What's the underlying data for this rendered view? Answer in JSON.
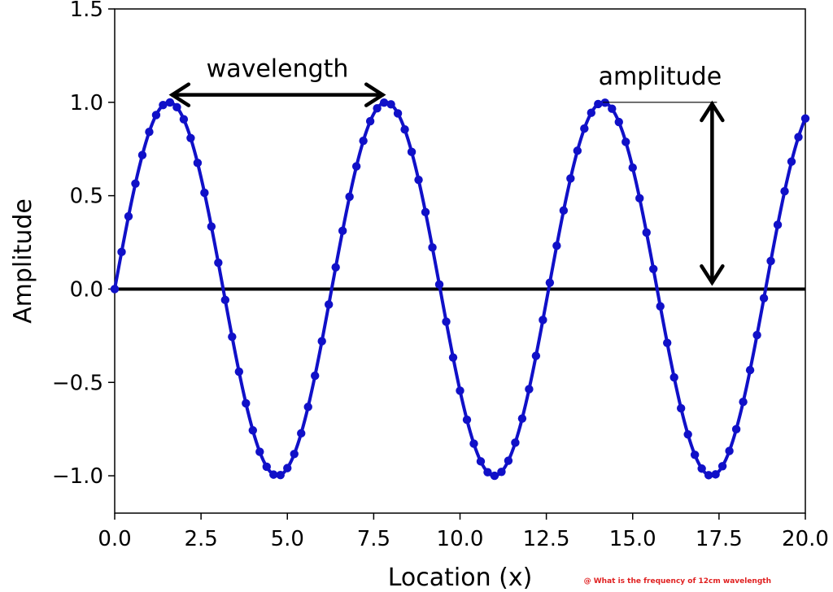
{
  "chart_data": {
    "type": "line",
    "title": "",
    "xlabel": "Location (x)",
    "ylabel": "Amplitude",
    "xlim": [
      0,
      20
    ],
    "ylim": [
      -1.2,
      1.5
    ],
    "xticks": [
      "0.0",
      "2.5",
      "5.0",
      "7.5",
      "10.0",
      "12.5",
      "15.0",
      "17.5",
      "20.0"
    ],
    "yticks": [
      "−1.0",
      "−0.5",
      "0.0",
      "0.5",
      "1.0",
      "1.5"
    ],
    "xtick_values": [
      0,
      2.5,
      5,
      7.5,
      10,
      12.5,
      15,
      17.5,
      20
    ],
    "ytick_values": [
      -1.0,
      -0.5,
      0.0,
      0.5,
      1.0,
      1.5
    ],
    "grid": false,
    "series": [
      {
        "function": "sin",
        "amplitude": 1.0,
        "wavelength": 6.283,
        "x_start": 0,
        "x_end": 20,
        "marker_step": 0.2,
        "color": "#1010c8",
        "markers": true
      }
    ],
    "baseline": {
      "y": 0.0,
      "color": "#000000"
    },
    "annotations": {
      "wavelength_label": "wavelength",
      "wavelength_from_x": 1.571,
      "wavelength_to_x": 7.854,
      "wavelength_y": 1.04,
      "amplitude_label": "amplitude",
      "amplitude_x": 17.3,
      "amplitude_from_y": 1.0,
      "amplitude_to_y": 0.0,
      "amplitude_peak_x": 14.137
    }
  },
  "watermark": "@ What is the frequency of 12cm wavelength"
}
